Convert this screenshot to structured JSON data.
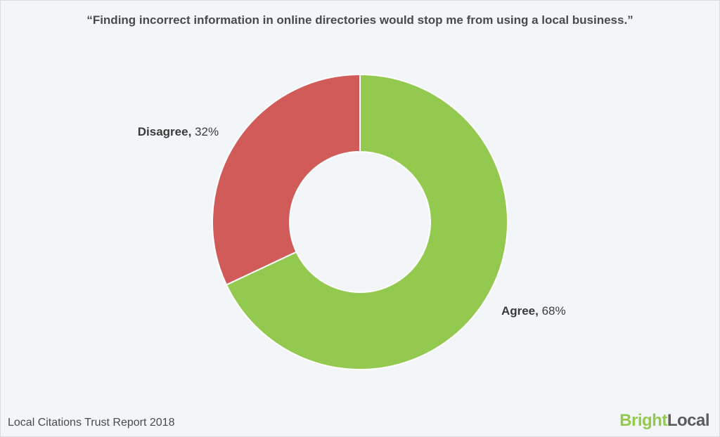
{
  "chart": {
    "type": "donut",
    "title": "“Finding incorrect information in online directories would stop me from using a local business.”",
    "title_fontsize": 17,
    "title_color": "#4a4a4a",
    "background_color": "#f3f6f8",
    "border_color": "#d9dde0",
    "outer_radius": 210,
    "inner_radius": 100,
    "stroke_color": "#ffffff",
    "stroke_width": 2,
    "label_fontsize": 17,
    "label_text_color": "#3a3a3a",
    "slices": [
      {
        "name": "Agree",
        "value": 68,
        "display": "68%",
        "color": "#93c94e"
      },
      {
        "name": "Disagree",
        "value": 32,
        "display": "32%",
        "color": "#d15b58"
      }
    ]
  },
  "footer": {
    "source_text": "Local Citations Trust Report 2018",
    "source_fontsize": 16,
    "source_color": "#4a4a4a",
    "brand": {
      "part1": "Bright",
      "part2": "Local",
      "part1_color": "#93c94e",
      "part2_color": "#5b5b5b",
      "fontsize": 24
    }
  }
}
